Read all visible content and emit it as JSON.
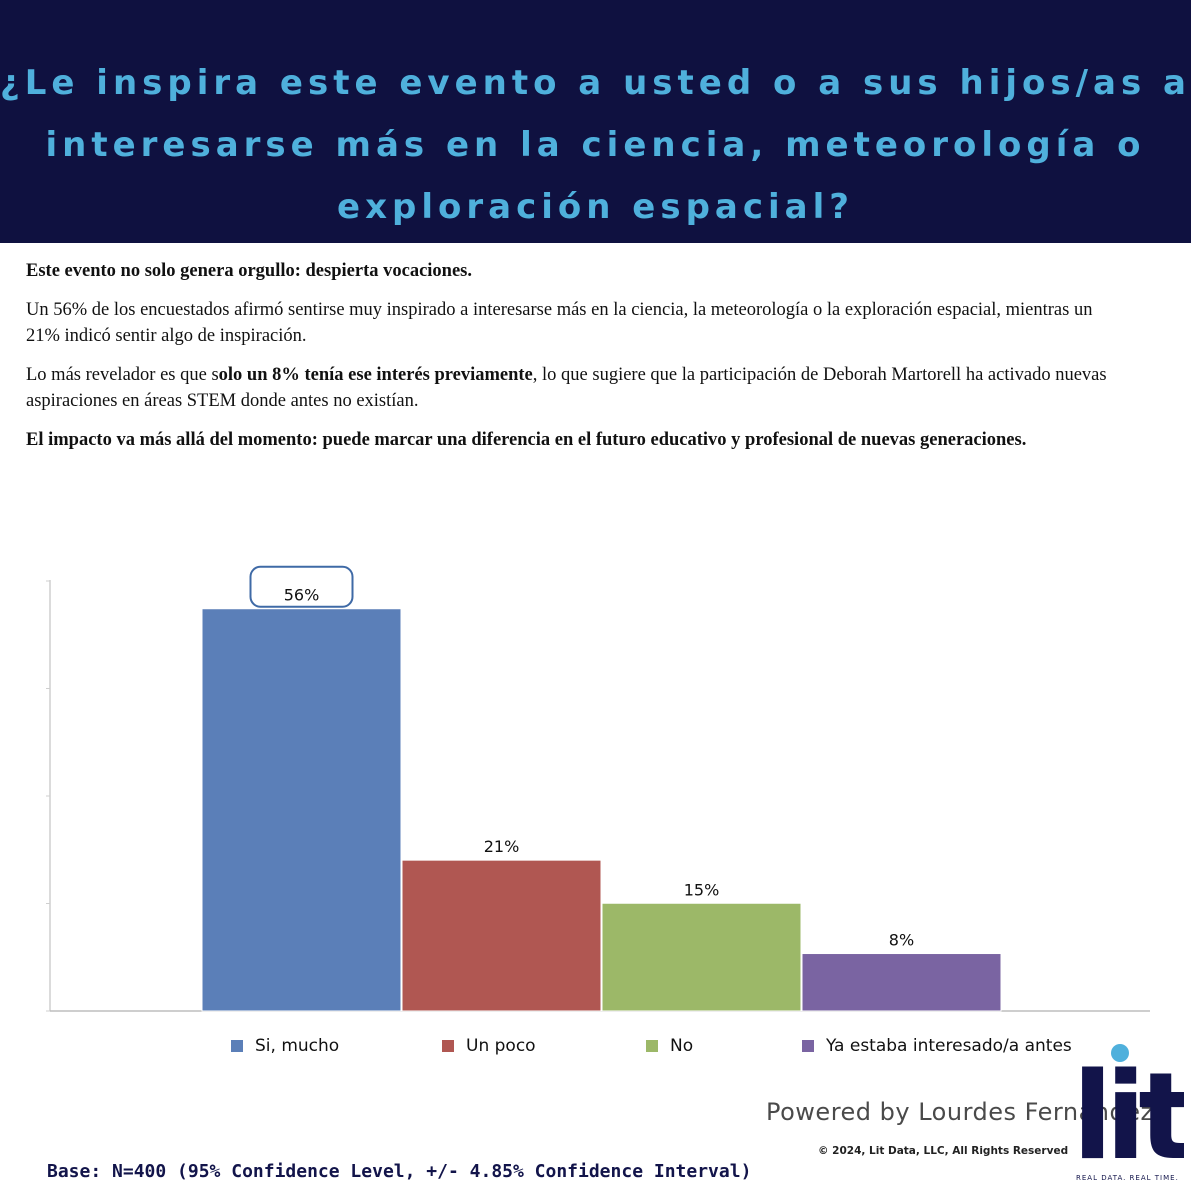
{
  "header": {
    "title": "¿Le inspira este evento a usted o a sus hijos/as a interesarse más en la ciencia, meteorología o exploración espacial?"
  },
  "body": {
    "headline": "Este evento no solo genera orgullo: despierta vocaciones.",
    "para1": "Un 56% de los encuestados afirmó sentirse muy inspirado a interesarse más en la ciencia, la meteorología o la exploración espacial, mientras un 21% indicó sentir algo de inspiración.",
    "para2_prefix": "Lo más revelador es que s",
    "para2_bold": "olo un 8% tenía ese interés previamente",
    "para2_suffix": ", lo que sugiere que la participación de Deborah Martorell ha activado nuevas aspiraciones en áreas STEM donde antes no existían.",
    "closing": "El impacto va más allá del momento: puede marcar una diferencia en el futuro educativo y profesional de nuevas generaciones."
  },
  "chart_data": {
    "type": "bar",
    "categories": [
      "Si, mucho",
      "Un poco",
      "No",
      "Ya estaba interesado/a antes"
    ],
    "values": [
      56,
      21,
      15,
      8
    ],
    "labels": [
      "56%",
      "21%",
      "15%",
      "8%"
    ],
    "colors": [
      "#5b7fb8",
      "#b05752",
      "#9cb868",
      "#7a64a2"
    ],
    "ylim": [
      0,
      60
    ],
    "grid": false,
    "legend": "bottom",
    "highlight_category": "Si, mucho"
  },
  "footer": {
    "powered_by": "Powered by Lourdes Fernández",
    "copyright": "© 2024, Lit Data, LLC, All Rights Reserved",
    "base": "Base: N=400 (95% Confidence Level, +/- 4.85% Confidence Interval)",
    "logo_text": "lit",
    "logo_tagline": "REAL DATA. REAL TIME."
  },
  "colors": {
    "header_bg": "#0f1140",
    "title_color": "#4fb0dc",
    "logo_color": "#12144a",
    "logo_dot": "#4fb0dc"
  }
}
